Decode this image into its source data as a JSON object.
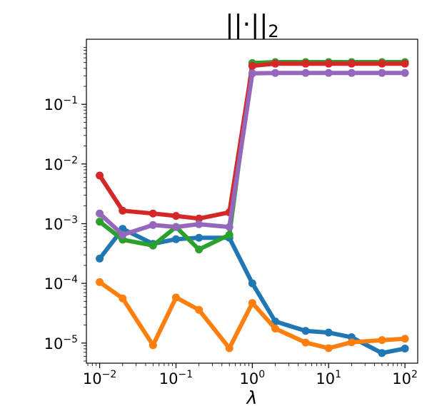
{
  "chart_data": {
    "type": "line",
    "title": "||·||",
    "title_subscript": "2",
    "xlabel": "λ",
    "ylabel": "",
    "xscale": "log",
    "yscale": "log",
    "xlim": [
      0.0067,
      147
    ],
    "ylim": [
      4.6e-06,
      1.23
    ],
    "grid": false,
    "x_ticks": [
      {
        "base": "10",
        "exp": "−2",
        "value": 0.01
      },
      {
        "base": "10",
        "exp": "−1",
        "value": 0.1
      },
      {
        "base": "10",
        "exp": "0",
        "value": 1
      },
      {
        "base": "10",
        "exp": "1",
        "value": 10
      },
      {
        "base": "10",
        "exp": "2",
        "value": 100
      }
    ],
    "y_ticks": [
      {
        "base": "10",
        "exp": "−5",
        "value": 1e-05
      },
      {
        "base": "10",
        "exp": "−4",
        "value": 0.0001
      },
      {
        "base": "10",
        "exp": "−3",
        "value": 0.001
      },
      {
        "base": "10",
        "exp": "−2",
        "value": 0.01
      },
      {
        "base": "10",
        "exp": "−1",
        "value": 0.1
      }
    ],
    "x": [
      0.01,
      0.02,
      0.05,
      0.1,
      0.2,
      0.5,
      1,
      2,
      5,
      10,
      20,
      50,
      100
    ],
    "series": [
      {
        "color": "#1f77b4",
        "values": [
          0.00026,
          0.00082,
          0.00046,
          0.00055,
          0.00058,
          0.00058,
          0.0001,
          2.3e-05,
          1.6e-05,
          1.5e-05,
          1.25e-05,
          6.8e-06,
          8.1e-06
        ]
      },
      {
        "color": "#ff7f0e",
        "values": [
          0.000105,
          5.6e-05,
          9.2e-06,
          5.8e-05,
          3.6e-05,
          8.2e-06,
          4.7e-05,
          1.75e-05,
          1.02e-05,
          8.2e-06,
          1.03e-05,
          1.12e-05,
          1.18e-05
        ]
      },
      {
        "color": "#2ca02c",
        "values": [
          0.00108,
          0.00054,
          0.00043,
          0.00088,
          0.00037,
          0.00065,
          0.49,
          0.51,
          0.51,
          0.51,
          0.51,
          0.51,
          0.51
        ]
      },
      {
        "color": "#d62728",
        "values": [
          0.0064,
          0.00165,
          0.00148,
          0.00135,
          0.00122,
          0.00155,
          0.44,
          0.48,
          0.48,
          0.48,
          0.48,
          0.48,
          0.48
        ]
      },
      {
        "color": "#9467bd",
        "values": [
          0.00148,
          0.00065,
          0.00095,
          0.00088,
          0.00098,
          0.00088,
          0.33,
          0.335,
          0.335,
          0.335,
          0.335,
          0.335,
          0.335
        ]
      }
    ]
  }
}
